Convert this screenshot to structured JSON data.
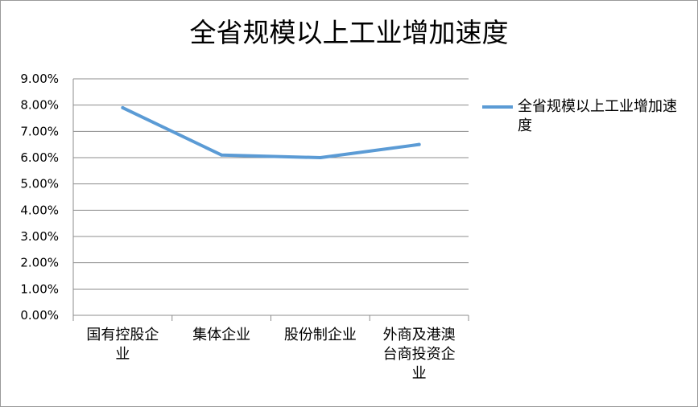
{
  "chart_data": {
    "type": "line",
    "title": "全省规模以上工业增加速度",
    "categories": [
      "国有控股企业",
      "集体企业",
      "股份制企业",
      "外商及港澳台商投资企业"
    ],
    "series": [
      {
        "name": "全省规模以上工业增加速度",
        "values": [
          7.9,
          6.1,
          6.0,
          6.5
        ],
        "color": "#5b9bd5"
      }
    ],
    "y_ticks": [
      "0.00%",
      "1.00%",
      "2.00%",
      "3.00%",
      "4.00%",
      "5.00%",
      "6.00%",
      "7.00%",
      "8.00%",
      "9.00%"
    ],
    "ylim": [
      0,
      9
    ],
    "grid": true,
    "legend_position": "right"
  }
}
